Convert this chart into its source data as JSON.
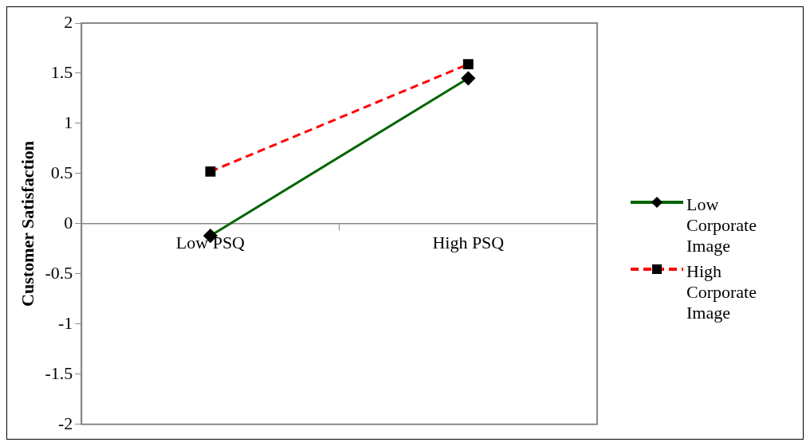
{
  "chart_data": {
    "type": "line",
    "ylabel": "Customer Satisfaction",
    "categories": [
      "Low PSQ",
      "High PSQ"
    ],
    "series": [
      {
        "name": "Low Corporate Image",
        "color": "#006400",
        "values": [
          -0.12,
          1.45
        ],
        "marker": "diamond",
        "line_style": "solid"
      },
      {
        "name": "High Corporate Image",
        "color": "#ff0000",
        "values": [
          0.52,
          1.59
        ],
        "marker": "square",
        "line_style": "dashed"
      }
    ],
    "ylim": [
      -2,
      2
    ],
    "yticks": [
      -2,
      -1.5,
      -1,
      -0.5,
      0,
      0.5,
      1,
      1.5,
      2
    ],
    "grid": false,
    "legend": "right"
  }
}
